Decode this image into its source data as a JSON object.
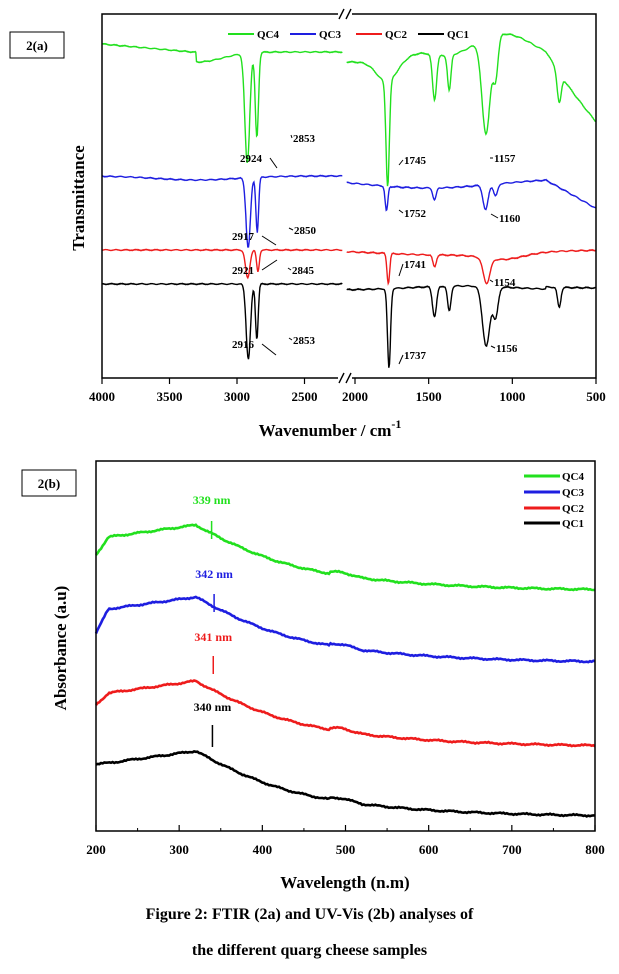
{
  "colors": {
    "QC4": "#22e01e",
    "QC3": "#1e1ee0",
    "QC2": "#ee1c1c",
    "QC1": "#000000"
  },
  "chart_data": [
    {
      "type": "line",
      "panel_label": "2(a)",
      "xlabel": "Wavenumber / cm",
      "xlabel_sup": "-1",
      "ylabel": "Transmittance",
      "xlim": [
        4000,
        500
      ],
      "x_axis_break": [
        2200,
        2000
      ],
      "x_ticks": [
        "4000",
        "3500",
        "3000",
        "2500",
        "2000",
        "1500",
        "1000",
        "500"
      ],
      "legend": [
        "QC4",
        "QC3",
        "QC2",
        "QC1"
      ],
      "legend_position": "top",
      "series": [
        {
          "name": "QC4",
          "peaks": [
            "2924",
            "2853",
            "1745",
            "1157"
          ]
        },
        {
          "name": "QC3",
          "peaks": [
            "2917",
            "2850",
            "1752",
            "1160"
          ]
        },
        {
          "name": "QC2",
          "peaks": [
            "2921",
            "2845",
            "1741",
            "1154"
          ]
        },
        {
          "name": "QC1",
          "peaks": [
            "2916",
            "2853",
            "1737",
            "1156"
          ]
        }
      ]
    },
    {
      "type": "line",
      "panel_label": "2(b)",
      "xlabel": "Wavelength (n.m)",
      "ylabel": "Absorbance (a.u)",
      "xlim": [
        200,
        800
      ],
      "x_ticks": [
        "200",
        "300",
        "400",
        "500",
        "600",
        "700",
        "800"
      ],
      "legend": [
        "QC4",
        "QC3",
        "QC2",
        "QC1"
      ],
      "legend_position": "top-right",
      "series": [
        {
          "name": "QC4",
          "peak_x": 339,
          "peak_label": "339 nm"
        },
        {
          "name": "QC3",
          "peak_x": 342,
          "peak_label": "342 nm"
        },
        {
          "name": "QC2",
          "peak_x": 341,
          "peak_label": "341 nm"
        },
        {
          "name": "QC1",
          "peak_x": 340,
          "peak_label": "340 nm"
        }
      ]
    }
  ],
  "caption": {
    "line1": "Figure 2: FTIR (2a) and UV-Vis (2b) analyses of",
    "line2": "the different quarg cheese samples"
  }
}
